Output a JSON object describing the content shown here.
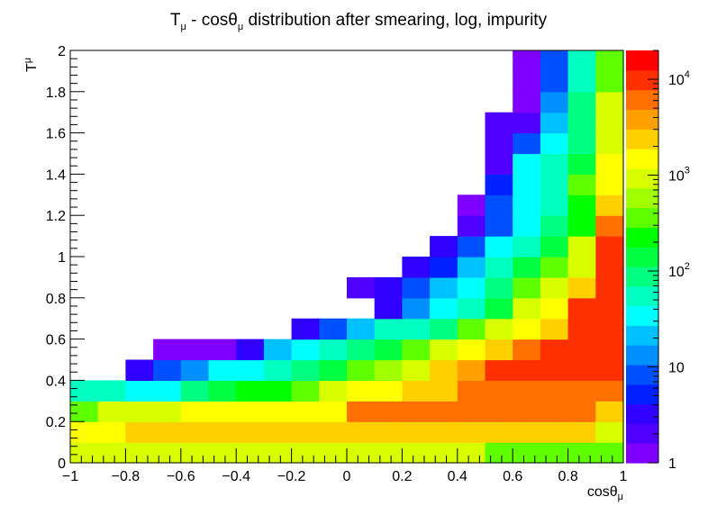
{
  "chart_data": {
    "type": "heatmap",
    "title": "T",
    "title_sub1": "μ",
    "title_mid": " - cosθ",
    "title_sub2": "μ",
    "title_rest": " distribution after smearing, log, impurity",
    "xlabel": "cosθ",
    "xlabel_sub": "μ",
    "ylabel": "T",
    "ylabel_sup": "μ",
    "xlim": [
      -1,
      1
    ],
    "ylim": [
      0,
      2
    ],
    "x_bins": 20,
    "y_bins": 20,
    "x_ticks": [
      {
        "v": -1,
        "label": "−1"
      },
      {
        "v": -0.8,
        "label": "−0.8"
      },
      {
        "v": -0.6,
        "label": "−0.6"
      },
      {
        "v": -0.4,
        "label": "−0.4"
      },
      {
        "v": -0.2,
        "label": "−0.2"
      },
      {
        "v": 0,
        "label": "0"
      },
      {
        "v": 0.2,
        "label": "0.2"
      },
      {
        "v": 0.4,
        "label": "0.4"
      },
      {
        "v": 0.6,
        "label": "0.6"
      },
      {
        "v": 0.8,
        "label": "0.8"
      },
      {
        "v": 1,
        "label": "1"
      }
    ],
    "y_ticks": [
      {
        "v": 0,
        "label": "0"
      },
      {
        "v": 0.2,
        "label": "0.2"
      },
      {
        "v": 0.4,
        "label": "0.4"
      },
      {
        "v": 0.6,
        "label": "0.6"
      },
      {
        "v": 0.8,
        "label": "0.8"
      },
      {
        "v": 1,
        "label": "1"
      },
      {
        "v": 1.2,
        "label": "1.2"
      },
      {
        "v": 1.4,
        "label": "1.4"
      },
      {
        "v": 1.6,
        "label": "1.6"
      },
      {
        "v": 1.8,
        "label": "1.8"
      },
      {
        "v": 2,
        "label": "2"
      }
    ],
    "z_scale": "log",
    "zlim": [
      1,
      20000
    ],
    "z_ticks": [
      {
        "v": 1,
        "base": "1",
        "exp": ""
      },
      {
        "v": 10,
        "base": "10",
        "exp": ""
      },
      {
        "v": 100,
        "base": "10",
        "exp": "2"
      },
      {
        "v": 1000,
        "base": "10",
        "exp": "3"
      },
      {
        "v": 10000,
        "base": "10",
        "exp": "4"
      }
    ],
    "palette": [
      "#7f00ff",
      "#5000ff",
      "#3000ff",
      "#0020ff",
      "#0050ff",
      "#0090ff",
      "#00c0ff",
      "#00ffff",
      "#00ffc0",
      "#00ff80",
      "#00ff40",
      "#00ff00",
      "#60ff00",
      "#a0ff00",
      "#d8ff00",
      "#ffff00",
      "#ffd000",
      "#ffa000",
      "#ff7000",
      "#ff3000",
      "#ff0000"
    ],
    "values_note": "",
    "rows_from_bottom": [
      [
        800,
        800,
        800,
        800,
        800,
        800,
        800,
        800,
        800,
        800,
        800,
        800,
        800,
        800,
        800,
        300,
        300,
        300,
        300,
        300
      ],
      [
        1500,
        1500,
        2500,
        2500,
        2500,
        2500,
        2500,
        2500,
        2500,
        2500,
        2500,
        2500,
        2500,
        2500,
        2500,
        2500,
        2500,
        2500,
        2500,
        900
      ],
      [
        400,
        800,
        800,
        800,
        1500,
        1500,
        1500,
        1500,
        1500,
        1500,
        5000,
        5000,
        5000,
        5000,
        5000,
        5000,
        5000,
        5000,
        5000,
        2500
      ],
      [
        60,
        50,
        40,
        40,
        100,
        150,
        200,
        200,
        400,
        800,
        1500,
        1500,
        3000,
        3000,
        5000,
        5000,
        5000,
        5000,
        5000,
        5000
      ],
      [
        null,
        null,
        3,
        8,
        12,
        30,
        40,
        60,
        80,
        150,
        300,
        500,
        800,
        2500,
        4000,
        10000,
        10000,
        10000,
        10000,
        10000
      ],
      [
        null,
        null,
        null,
        1.5,
        1.5,
        1.5,
        4,
        20,
        30,
        50,
        80,
        150,
        300,
        800,
        1500,
        3000,
        5000,
        10000,
        10000,
        10000
      ],
      [
        null,
        null,
        null,
        null,
        null,
        null,
        null,
        null,
        3,
        8,
        20,
        50,
        60,
        100,
        300,
        800,
        1500,
        3000,
        10000,
        10000
      ],
      [
        null,
        null,
        null,
        null,
        null,
        null,
        null,
        null,
        null,
        null,
        null,
        3,
        15,
        30,
        60,
        150,
        800,
        1500,
        10000,
        10000
      ],
      [
        null,
        null,
        null,
        null,
        null,
        null,
        null,
        null,
        null,
        null,
        2,
        3,
        8,
        20,
        40,
        80,
        300,
        1000,
        3000,
        10000
      ],
      [
        null,
        null,
        null,
        null,
        null,
        null,
        null,
        null,
        null,
        null,
        null,
        null,
        3,
        5,
        20,
        50,
        120,
        300,
        1000,
        10000
      ],
      [
        null,
        null,
        null,
        null,
        null,
        null,
        null,
        null,
        null,
        null,
        null,
        null,
        null,
        3,
        8,
        30,
        60,
        150,
        800,
        10000
      ],
      [
        null,
        null,
        null,
        null,
        null,
        null,
        null,
        null,
        null,
        null,
        null,
        null,
        null,
        null,
        2,
        8,
        30,
        80,
        200,
        5000
      ],
      [
        null,
        null,
        null,
        null,
        null,
        null,
        null,
        null,
        null,
        null,
        null,
        null,
        null,
        null,
        1.5,
        8,
        30,
        60,
        200,
        2500
      ],
      [
        null,
        null,
        null,
        null,
        null,
        null,
        null,
        null,
        null,
        null,
        null,
        null,
        null,
        null,
        null,
        6,
        40,
        60,
        300,
        1500
      ],
      [
        null,
        null,
        null,
        null,
        null,
        null,
        null,
        null,
        null,
        null,
        null,
        null,
        null,
        null,
        null,
        2,
        30,
        60,
        150,
        1500
      ],
      [
        null,
        null,
        null,
        null,
        null,
        null,
        null,
        null,
        null,
        null,
        null,
        null,
        null,
        null,
        null,
        2,
        8,
        30,
        100,
        800
      ],
      [
        null,
        null,
        null,
        null,
        null,
        null,
        null,
        null,
        null,
        null,
        null,
        null,
        null,
        null,
        null,
        2,
        2,
        20,
        80,
        800
      ],
      [
        null,
        null,
        null,
        null,
        null,
        null,
        null,
        null,
        null,
        null,
        null,
        null,
        null,
        null,
        null,
        null,
        1.5,
        12,
        80,
        800
      ],
      [
        null,
        null,
        null,
        null,
        null,
        null,
        null,
        null,
        null,
        null,
        null,
        null,
        null,
        null,
        null,
        null,
        1.2,
        8,
        60,
        400
      ],
      [
        null,
        null,
        null,
        null,
        null,
        null,
        null,
        null,
        null,
        null,
        null,
        null,
        null,
        null,
        null,
        null,
        1.5,
        8,
        50,
        400
      ]
    ]
  }
}
